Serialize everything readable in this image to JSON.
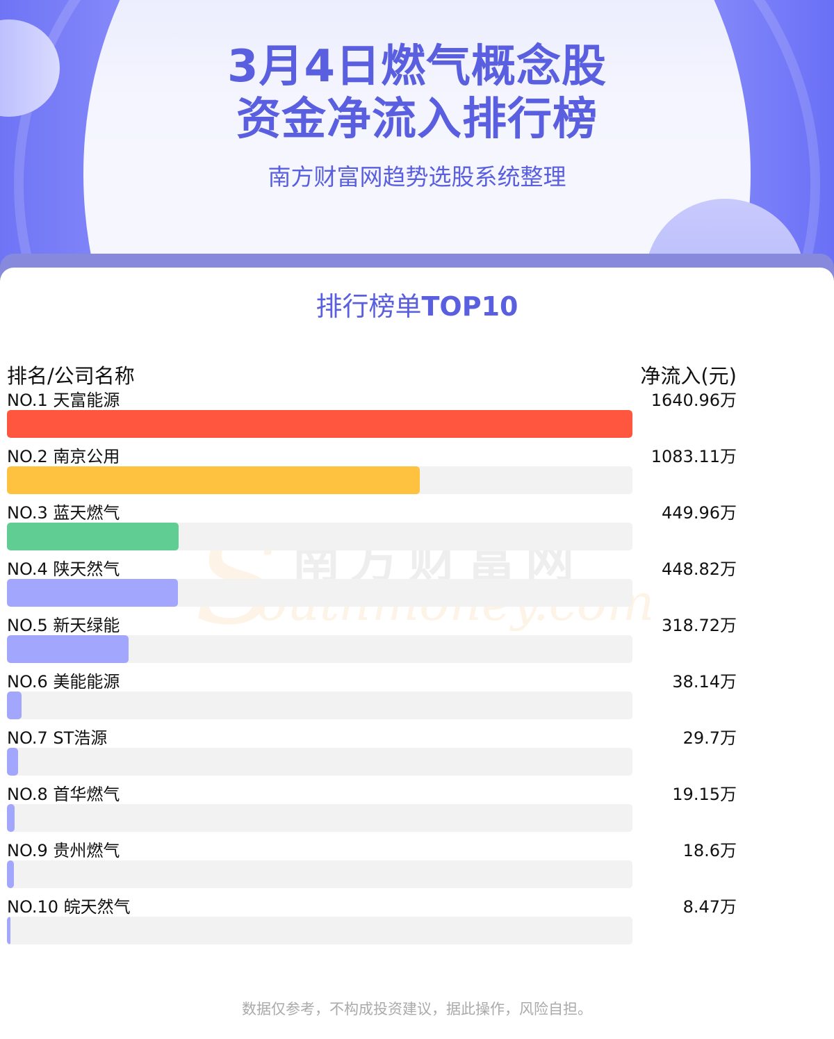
{
  "header": {
    "title_line1": "3月4日燃气概念股",
    "title_line2": "资金净流入排行榜",
    "subtitle": "南方财富网趋势选股系统整理"
  },
  "section": {
    "title_cn": "排行榜单",
    "title_en": "TOP10"
  },
  "columns": {
    "left": "排名/公司名称",
    "right": "净流入(元)"
  },
  "watermark": {
    "cn": "南方财富网",
    "en": "outhmoney.com",
    "s": "S"
  },
  "footer": "数据仅参考，不构成投资建议，据此操作，风险自担。",
  "chart_data": {
    "type": "bar",
    "orientation": "horizontal",
    "categories": [
      "NO.1 天富能源",
      "NO.2 南京公用",
      "NO.3 蓝天燃气",
      "NO.4 陕天然气",
      "NO.5 新天绿能",
      "NO.6 美能能源",
      "NO.7 ST浩源",
      "NO.8 首华燃气",
      "NO.9 贵州燃气",
      "NO.10 皖天然气"
    ],
    "values": [
      1640.96,
      1083.11,
      449.96,
      448.82,
      318.72,
      38.14,
      29.7,
      19.15,
      18.6,
      8.47
    ],
    "value_labels": [
      "1640.96万",
      "1083.11万",
      "449.96万",
      "448.82万",
      "318.72万",
      "38.14万",
      "29.7万",
      "19.15万",
      "18.6万",
      "8.47万"
    ],
    "unit": "万",
    "colors": [
      "#ff5640",
      "#ffc140",
      "#60cd92",
      "#a2a6fd",
      "#a2a6fd",
      "#a2a6fd",
      "#a2a6fd",
      "#a2a6fd",
      "#a2a6fd",
      "#a2a6fd"
    ],
    "track_color": "#f2f2f2",
    "xlim": [
      0,
      1640.96
    ]
  }
}
